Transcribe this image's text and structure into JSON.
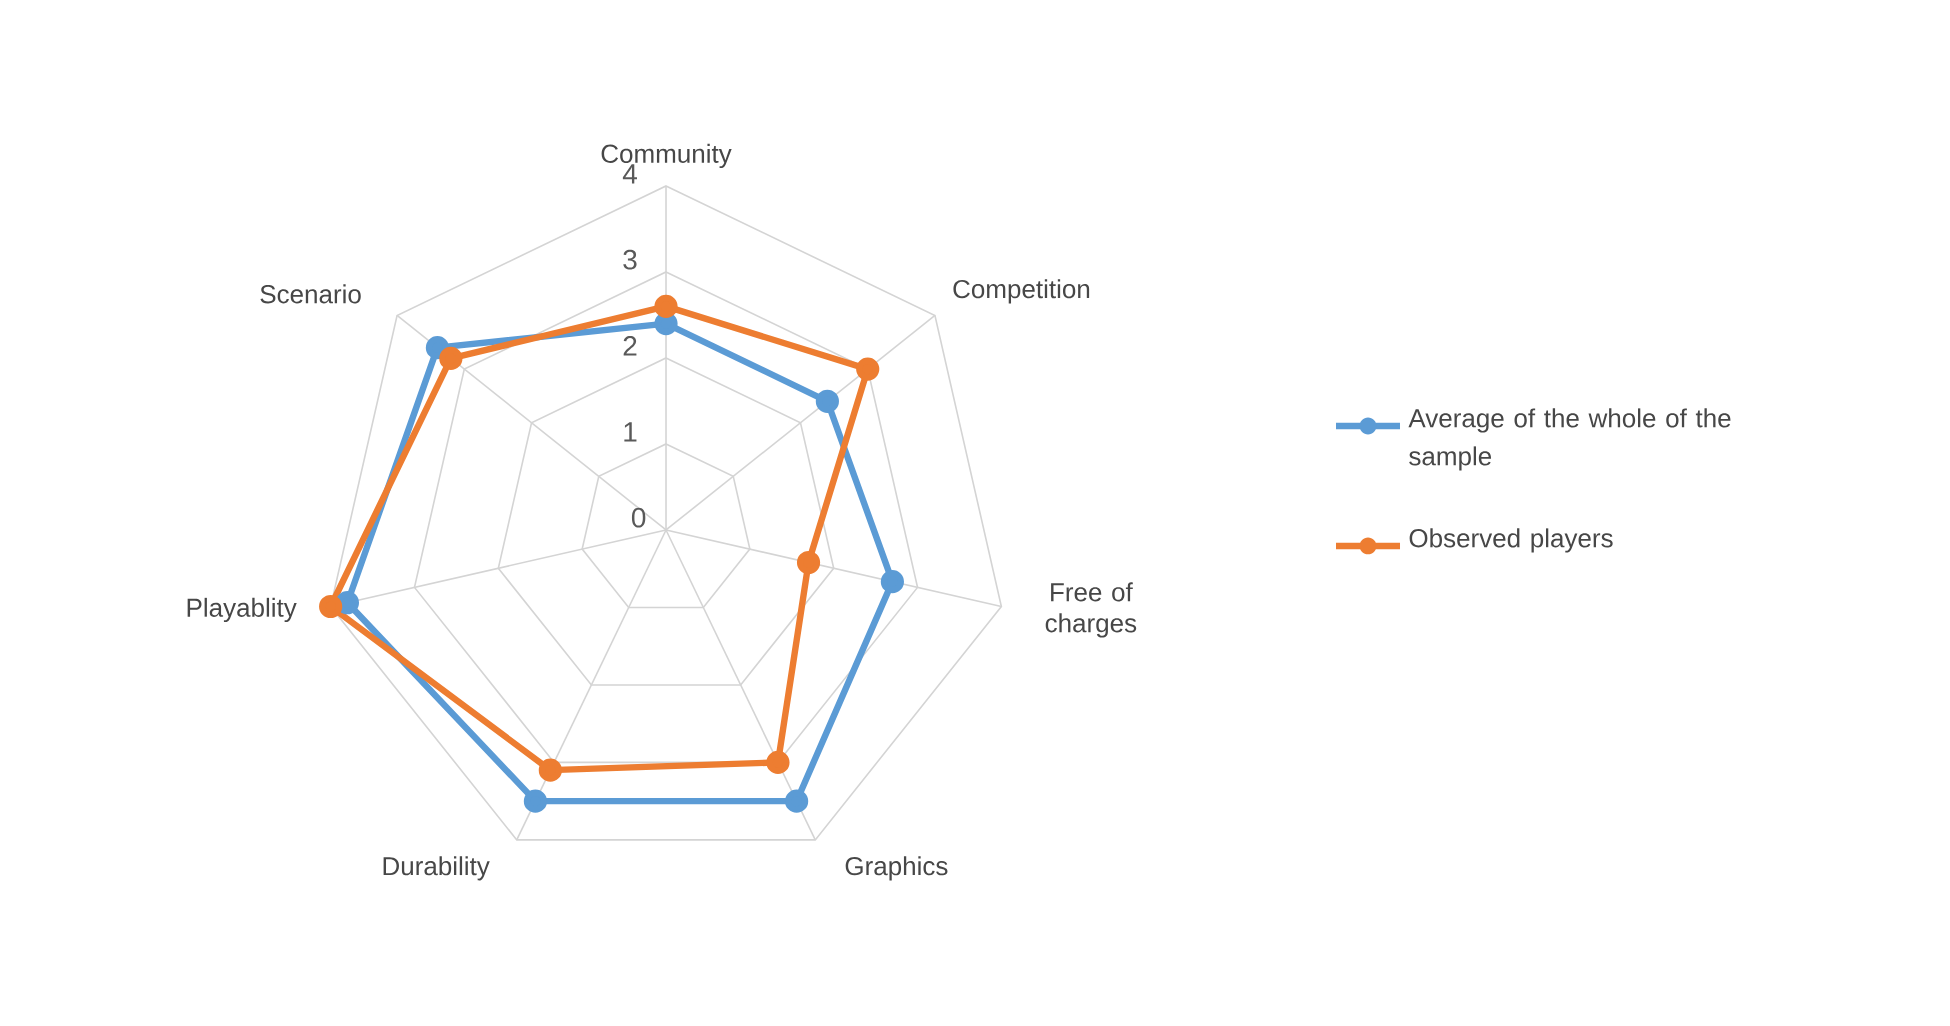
{
  "chart_data": {
    "type": "radar",
    "categories": [
      "Community",
      "Competition",
      "Free of charges",
      "Graphics",
      "Durability",
      "Playablity",
      "Scenario"
    ],
    "ylim": [
      0,
      4
    ],
    "yticks": [
      0,
      1,
      2,
      3,
      4
    ],
    "grid": true,
    "legend": "right",
    "marker": "circle",
    "line_style": "solid",
    "series": [
      {
        "name": "Average of the whole of the sample",
        "color": "#5b9bd5",
        "values": [
          2.4,
          2.4,
          2.7,
          3.5,
          3.5,
          3.8,
          3.4
        ]
      },
      {
        "name": "Observed players",
        "color": "#ed7d31",
        "values": [
          2.6,
          3.0,
          1.7,
          3.0,
          3.1,
          4.0,
          3.2
        ]
      }
    ]
  }
}
